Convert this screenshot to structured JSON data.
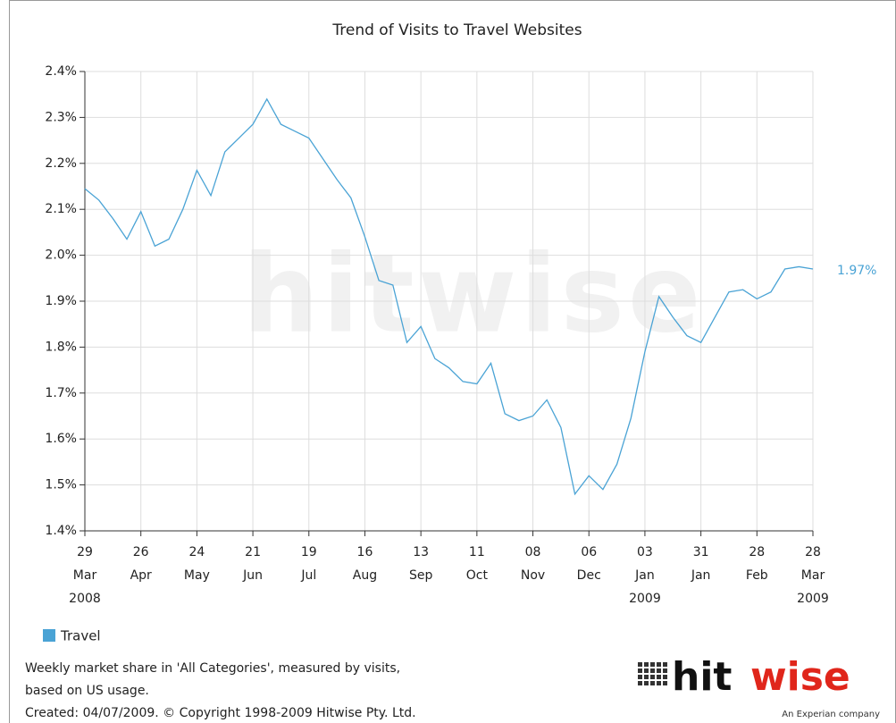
{
  "chart_data": {
    "type": "line",
    "title": "Trend of Visits to Travel Websites",
    "categories": [
      [
        "29",
        "Mar",
        "2008"
      ],
      null,
      null,
      null,
      [
        "26",
        "Apr"
      ],
      null,
      null,
      null,
      [
        "24",
        "May"
      ],
      null,
      null,
      null,
      [
        "21",
        "Jun"
      ],
      null,
      null,
      null,
      [
        "19",
        "Jul"
      ],
      null,
      null,
      null,
      [
        "16",
        "Aug"
      ],
      null,
      null,
      null,
      [
        "13",
        "Sep"
      ],
      null,
      null,
      null,
      [
        "11",
        "Oct"
      ],
      null,
      null,
      null,
      [
        "08",
        "Nov"
      ],
      null,
      null,
      null,
      [
        "06",
        "Dec"
      ],
      null,
      null,
      null,
      [
        "03",
        "Jan",
        "2009"
      ],
      null,
      null,
      null,
      [
        "31",
        "Jan"
      ],
      null,
      null,
      null,
      [
        "28",
        "Feb"
      ],
      null,
      null,
      null,
      [
        "28",
        "Mar",
        "2009"
      ]
    ],
    "series": [
      {
        "name": "Travel",
        "color": "#4aa3d5",
        "values": [
          2.145,
          2.12,
          2.08,
          2.035,
          2.095,
          2.02,
          2.035,
          2.1,
          2.185,
          2.13,
          2.225,
          2.255,
          2.285,
          2.34,
          2.285,
          2.27,
          2.255,
          2.21,
          2.165,
          2.125,
          2.04,
          1.945,
          1.935,
          1.81,
          1.845,
          1.775,
          1.755,
          1.725,
          1.72,
          1.765,
          1.655,
          1.64,
          1.65,
          1.685,
          1.625,
          1.48,
          1.52,
          1.49,
          1.545,
          1.645,
          1.79,
          1.91,
          1.865,
          1.825,
          1.81,
          1.865,
          1.92,
          1.925,
          1.905,
          1.92,
          1.97,
          1.975,
          1.97
        ],
        "end_label": "1.97%"
      }
    ],
    "ylim": [
      1.4,
      2.4
    ],
    "yticks": [
      {
        "value": 1.4,
        "label": "1.4%"
      },
      {
        "value": 1.5,
        "label": "1.5%"
      },
      {
        "value": 1.6,
        "label": "1.6%"
      },
      {
        "value": 1.7,
        "label": "1.7%"
      },
      {
        "value": 1.8,
        "label": "1.8%"
      },
      {
        "value": 1.9,
        "label": "1.9%"
      },
      {
        "value": 2.0,
        "label": "2.0%"
      },
      {
        "value": 2.1,
        "label": "2.1%"
      },
      {
        "value": 2.2,
        "label": "2.2%"
      },
      {
        "value": 2.3,
        "label": "2.3%"
      },
      {
        "value": 2.4,
        "label": "2.4%"
      }
    ],
    "grid": true,
    "legend": "bottom-left",
    "watermark": "hitwise",
    "notes": [
      "Weekly market share in 'All Categories', measured by visits,",
      "based on US usage.",
      "Created: 04/07/2009. © Copyright 1998-2009 Hitwise Pty. Ltd."
    ],
    "logo": {
      "part1": "hit",
      "part2": "wise",
      "tagline": "An Experian company"
    }
  }
}
